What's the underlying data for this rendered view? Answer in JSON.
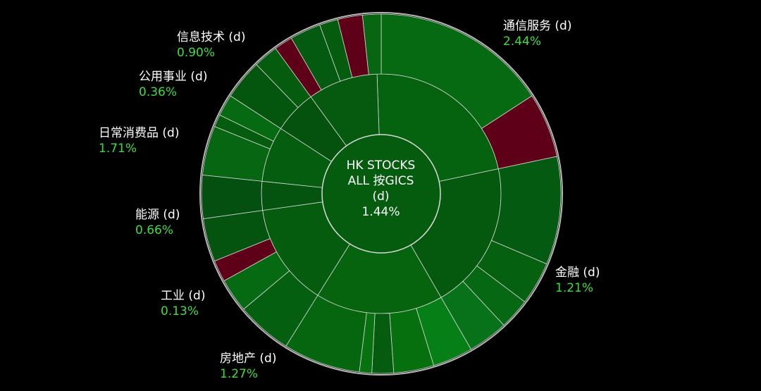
{
  "colors": {
    "background": "#000000",
    "positive_text": "#3fdc3f",
    "label_text": "#ffffff",
    "negative_fill": "#5e0018",
    "separator": "#d8d8d8"
  },
  "center": {
    "line1": "HK STOCKS",
    "line2": "ALL 按GICS",
    "line3": "(d)",
    "value": "1.44%"
  },
  "chart_data": {
    "type": "sunburst",
    "title": "HK STOCKS ALL 按GICS (d)",
    "total_change_pct": 1.44,
    "sectors": [
      {
        "name": "通信服务 (d)",
        "change_pct": "2.44%"
      },
      {
        "name": "金融 (d)",
        "change_pct": "1.21%"
      },
      {
        "name": "房地产 (d)",
        "change_pct": "1.27%"
      },
      {
        "name": "工业 (d)",
        "change_pct": "0.13%"
      },
      {
        "name": "能源 (d)",
        "change_pct": "0.66%"
      },
      {
        "name": "日常消费品 (d)",
        "change_pct": "1.71%"
      },
      {
        "name": "公用事业 (d)",
        "change_pct": "0.36%"
      },
      {
        "name": "信息技术 (d)",
        "change_pct": "0.90%"
      }
    ]
  }
}
